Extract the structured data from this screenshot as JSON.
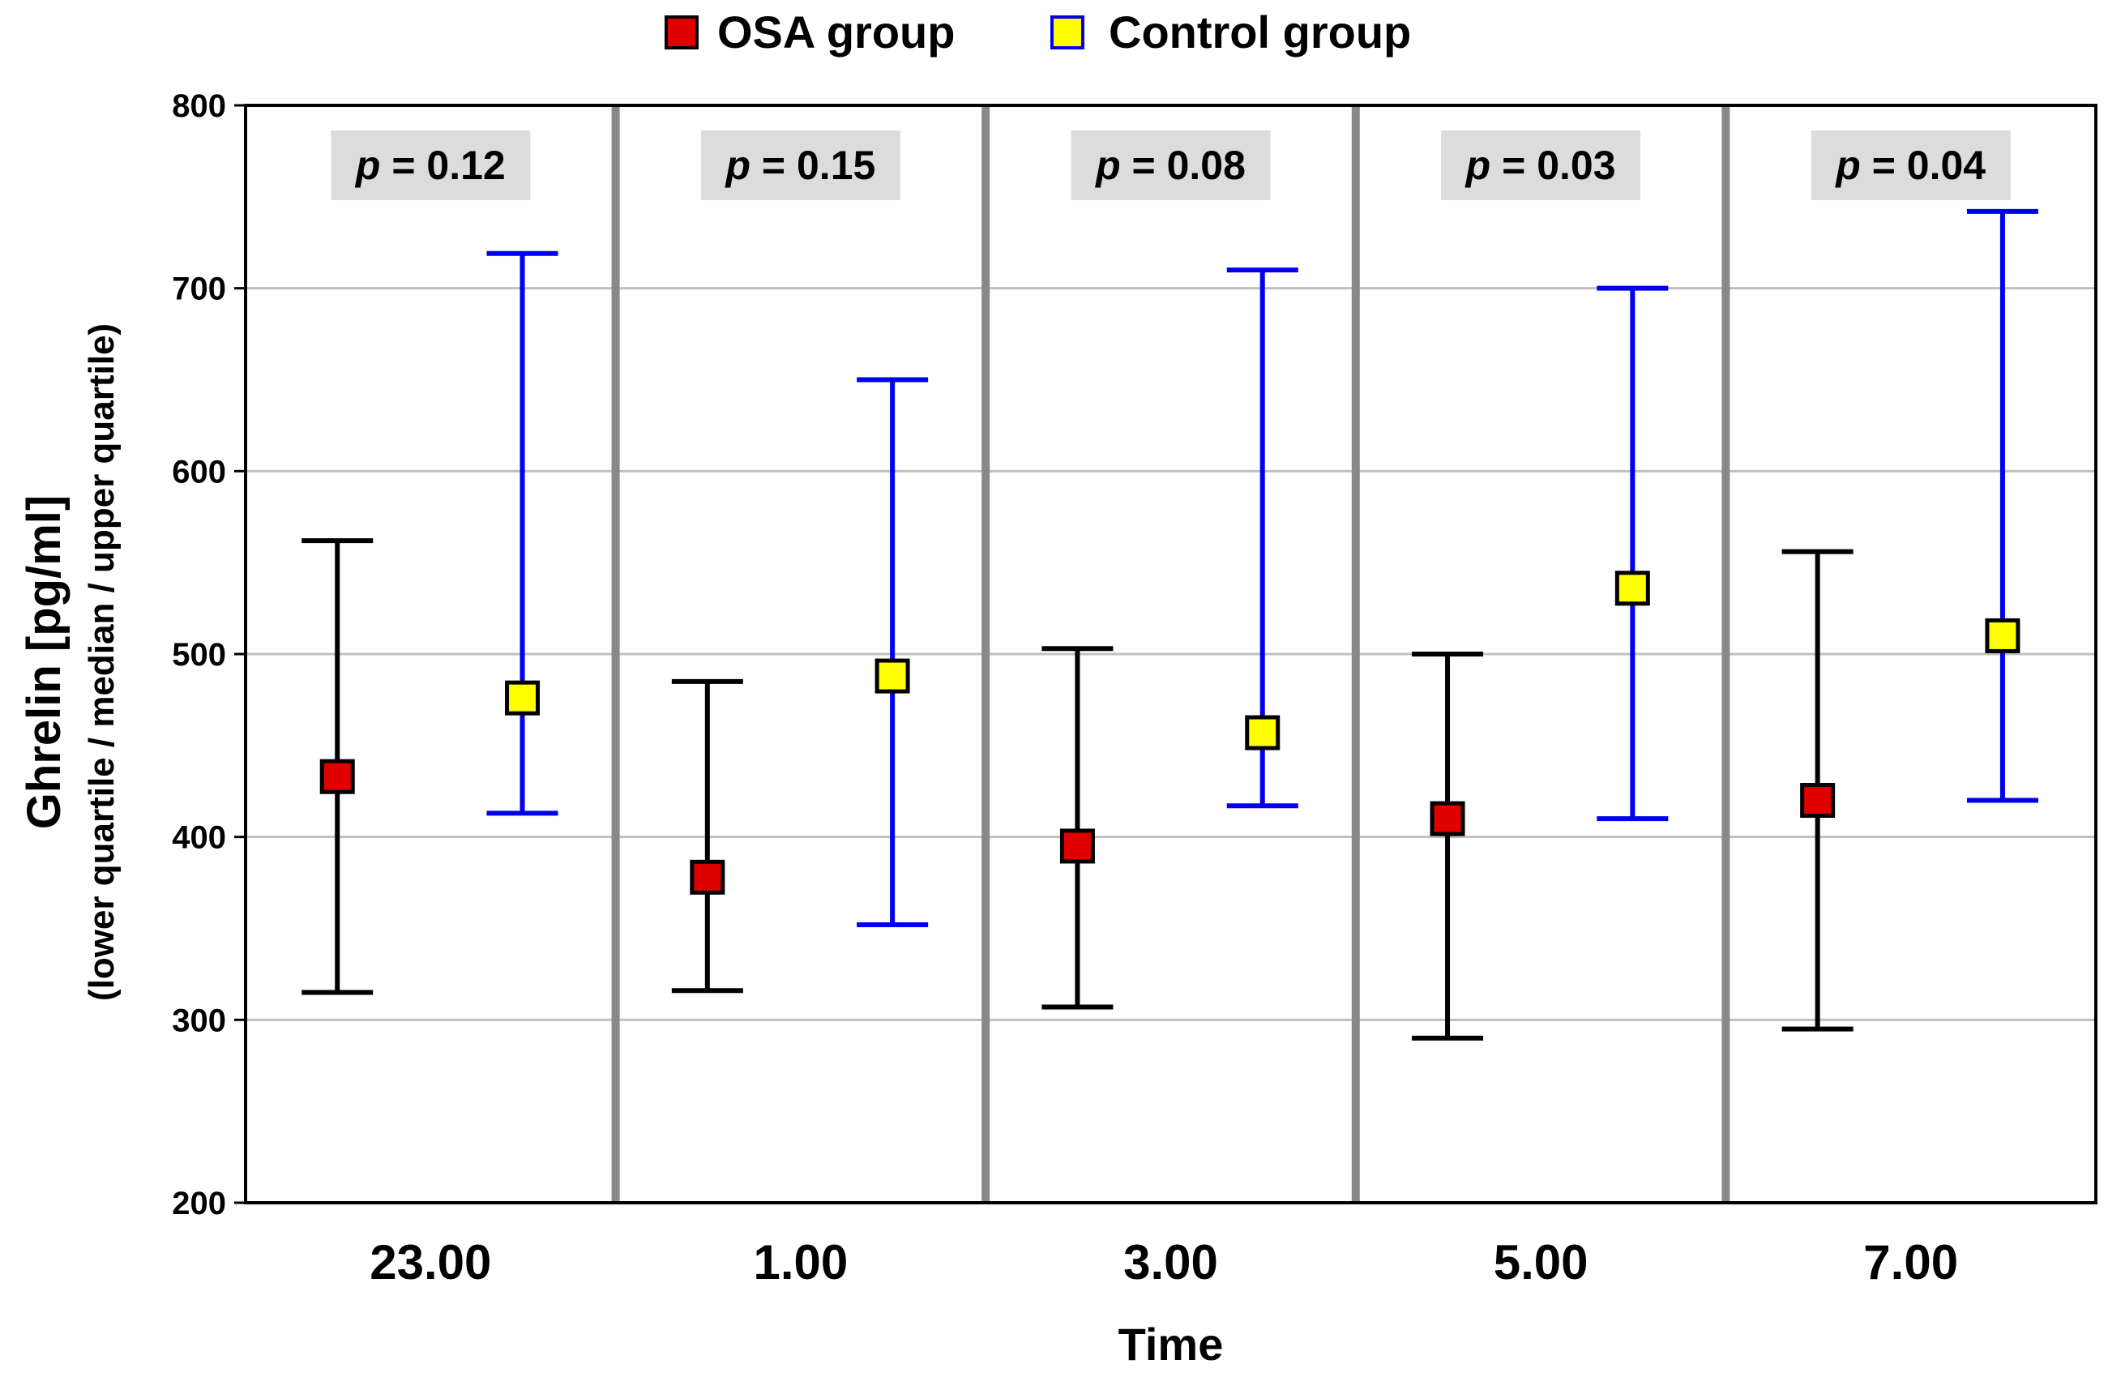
{
  "chart_data": {
    "type": "scatter",
    "subtype": "median-with-interquartile-error-bars",
    "xlabel": "Time",
    "ylabel": "Ghrelin [pg/ml]",
    "ylabel_sub": "(lower quartile / median / upper quartile)",
    "ylim": [
      200,
      800
    ],
    "yticks": [
      200,
      300,
      400,
      500,
      600,
      700,
      800
    ],
    "grid": true,
    "legend_position": "top-center",
    "categories": [
      "23.00",
      "1.00",
      "3.00",
      "5.00",
      "7.00"
    ],
    "series": [
      {
        "name": "OSA group",
        "marker_color": "#e00000",
        "bar_color": "#000000",
        "median": [
          433,
          378,
          395,
          410,
          420
        ],
        "lower_quartile": [
          315,
          316,
          307,
          290,
          295
        ],
        "upper_quartile": [
          562,
          485,
          503,
          500,
          556
        ]
      },
      {
        "name": "Control group",
        "marker_color": "#ffff00",
        "bar_color": "#0000ee",
        "median": [
          476,
          488,
          457,
          536,
          510
        ],
        "lower_quartile": [
          413,
          352,
          417,
          410,
          420
        ],
        "upper_quartile": [
          719,
          650,
          710,
          700,
          742
        ]
      }
    ],
    "annotations": [
      {
        "category": "23.00",
        "p_symbol": "p",
        "text": " = 0.12"
      },
      {
        "category": "1.00",
        "p_symbol": "p",
        "text": " = 0.15"
      },
      {
        "category": "3.00",
        "p_symbol": "p",
        "text": " = 0.08"
      },
      {
        "category": "5.00",
        "p_symbol": "p",
        "text": " = 0.03"
      },
      {
        "category": "7.00",
        "p_symbol": "p",
        "text": " = 0.04"
      }
    ]
  }
}
